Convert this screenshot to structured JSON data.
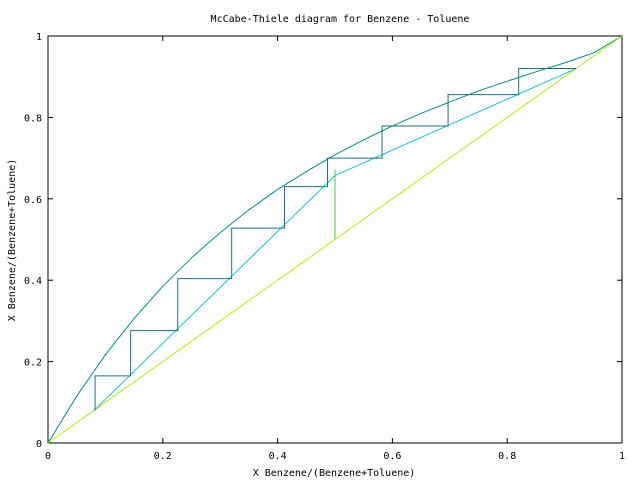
{
  "chart_data": {
    "type": "line",
    "title": "McCabe-Thiele diagram for Benzene - Toluene",
    "xlabel": "X Benzene/(Benzene+Toluene)",
    "ylabel": "X Benzene/(Benzene+Toluene)",
    "xlim": [
      0,
      1
    ],
    "ylim": [
      0,
      1
    ],
    "xticks": [
      0,
      0.2,
      0.4,
      0.6,
      0.8,
      1
    ],
    "yticks": [
      0,
      0.2,
      0.4,
      0.6,
      0.8,
      1
    ],
    "xtick_labels": [
      "0",
      "0.2",
      "0.4",
      "0.6",
      "0.8",
      "1"
    ],
    "ytick_labels": [
      "0",
      "0.2",
      "0.4",
      "0.6",
      "0.8",
      "1"
    ],
    "grid": false,
    "legend": "none",
    "series": [
      {
        "role": "equilibrium-curve",
        "color": "#008b8b",
        "x": [
          0,
          0.05,
          0.1,
          0.15,
          0.2,
          0.25,
          0.3,
          0.35,
          0.4,
          0.45,
          0.5,
          0.55,
          0.6,
          0.65,
          0.7,
          0.75,
          0.8,
          0.85,
          0.9,
          0.95,
          1
        ],
        "y": [
          0,
          0.115,
          0.217,
          0.306,
          0.385,
          0.455,
          0.517,
          0.573,
          0.623,
          0.667,
          0.708,
          0.745,
          0.779,
          0.81,
          0.838,
          0.865,
          0.889,
          0.912,
          0.934,
          0.958,
          1
        ]
      },
      {
        "role": "diagonal",
        "color": "#b4ee1e",
        "x": [
          0,
          1
        ],
        "y": [
          0,
          1
        ]
      },
      {
        "role": "rectifying-operating-line",
        "color": "#20c0d0",
        "x": [
          0.5,
          0.92
        ],
        "y": [
          0.657,
          0.92
        ]
      },
      {
        "role": "stripping-operating-line",
        "color": "#20c0d0",
        "x": [
          0.08,
          0.5
        ],
        "y": [
          0.08,
          0.657
        ]
      },
      {
        "role": "q-line",
        "color": "#40d040",
        "x": [
          0.5,
          0.5
        ],
        "y": [
          0.5,
          0.672
        ]
      },
      {
        "role": "stages",
        "color": "#1f6f7f",
        "x": [
          0.92,
          0.82,
          0.82,
          0.697,
          0.697,
          0.582,
          0.582,
          0.487,
          0.487,
          0.412,
          0.412,
          0.32,
          0.32,
          0.226,
          0.226,
          0.144,
          0.144,
          0.082,
          0.082
        ],
        "y": [
          0.92,
          0.92,
          0.856,
          0.856,
          0.779,
          0.779,
          0.7,
          0.7,
          0.63,
          0.63,
          0.528,
          0.528,
          0.404,
          0.404,
          0.276,
          0.276,
          0.165,
          0.165,
          0.08
        ]
      }
    ]
  }
}
